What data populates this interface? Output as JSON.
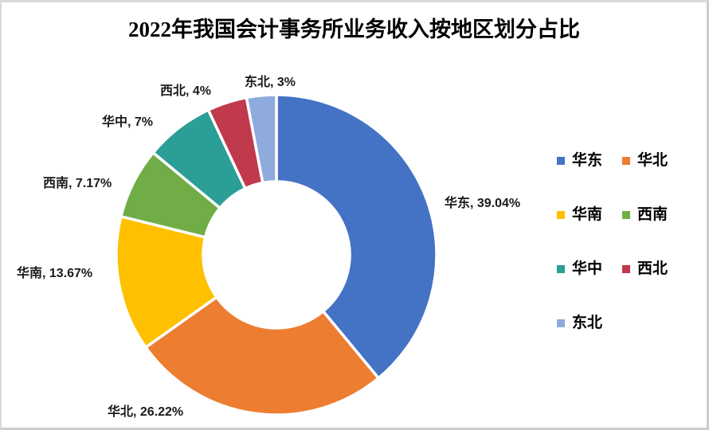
{
  "title": "2022年我国会计事务所业务收入按地区划分占比",
  "chart_data": {
    "type": "pie",
    "subtype": "donut",
    "title": "2022年我国会计事务所业务收入按地区划分占比",
    "unit": "%",
    "start_angle_deg": -90,
    "direction": "clockwise",
    "hole_ratio": 0.46,
    "legend_position": "right",
    "legend_columns": 2,
    "points": [
      {
        "id": "east-china",
        "name": "华东",
        "value": 39.04,
        "label": "华东, 39.04%",
        "color": "#4472C4"
      },
      {
        "id": "north-china",
        "name": "华北",
        "value": 26.22,
        "label": "华北, 26.22%",
        "color": "#ED7D31"
      },
      {
        "id": "south-china",
        "name": "华南",
        "value": 13.67,
        "label": "华南, 13.67%",
        "color": "#FFC000"
      },
      {
        "id": "southwest",
        "name": "西南",
        "value": 7.17,
        "label": "西南, 7.17%",
        "color": "#70AD47"
      },
      {
        "id": "central-china",
        "name": "华中",
        "value": 7,
        "label": "华中, 7%",
        "color": "#2B9E96"
      },
      {
        "id": "northwest",
        "name": "西北",
        "value": 4,
        "label": "西北, 4%",
        "color": "#C0394C"
      },
      {
        "id": "northeast",
        "name": "东北",
        "value": 3,
        "label": "东北, 3%",
        "color": "#8FAADC"
      }
    ]
  }
}
